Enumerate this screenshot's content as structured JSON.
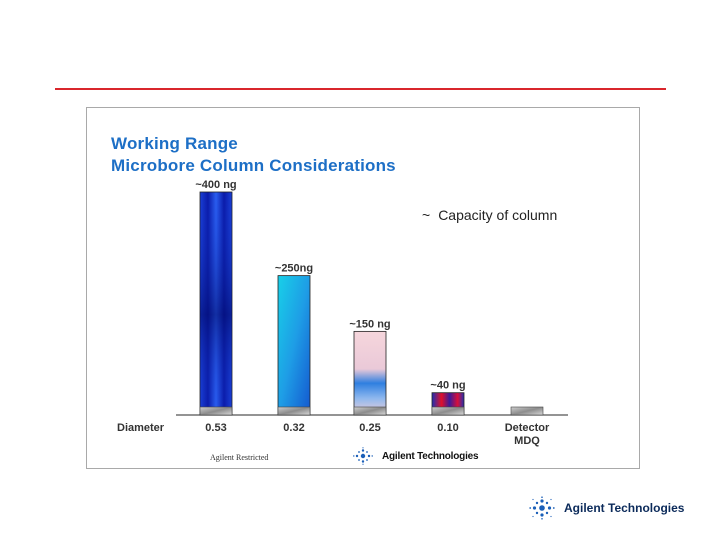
{
  "slide": {
    "title_line1": "Working Range",
    "title_line2": "Microbore Column Considerations",
    "legend_text": "Capacity of column",
    "legend_symbol": "~",
    "restricted": "Agilent Restricted",
    "inner_logo_text": "Agilent Technologies",
    "footer_logo_text": "Agilent Technologies",
    "colors": {
      "accent_rule": "#d9262c",
      "title": "#1d6fc6"
    }
  },
  "chart_data": {
    "type": "bar",
    "title": "Working Range Microbore Column Considerations",
    "xlabel": "Diameter",
    "ylabel": "",
    "categories": [
      "0.53",
      "0.32",
      "0.25",
      "0.10",
      "Detector MDQ"
    ],
    "values": [
      400,
      250,
      150,
      40,
      0
    ],
    "data_labels": [
      "~400 ng",
      "~250ng",
      "~150 ng",
      "~40 ng",
      ""
    ],
    "series": [
      {
        "values": [
          400,
          250,
          150,
          40,
          0
        ]
      }
    ],
    "ylim": [
      0,
      440
    ],
    "grid": false,
    "legend": "top-right"
  }
}
